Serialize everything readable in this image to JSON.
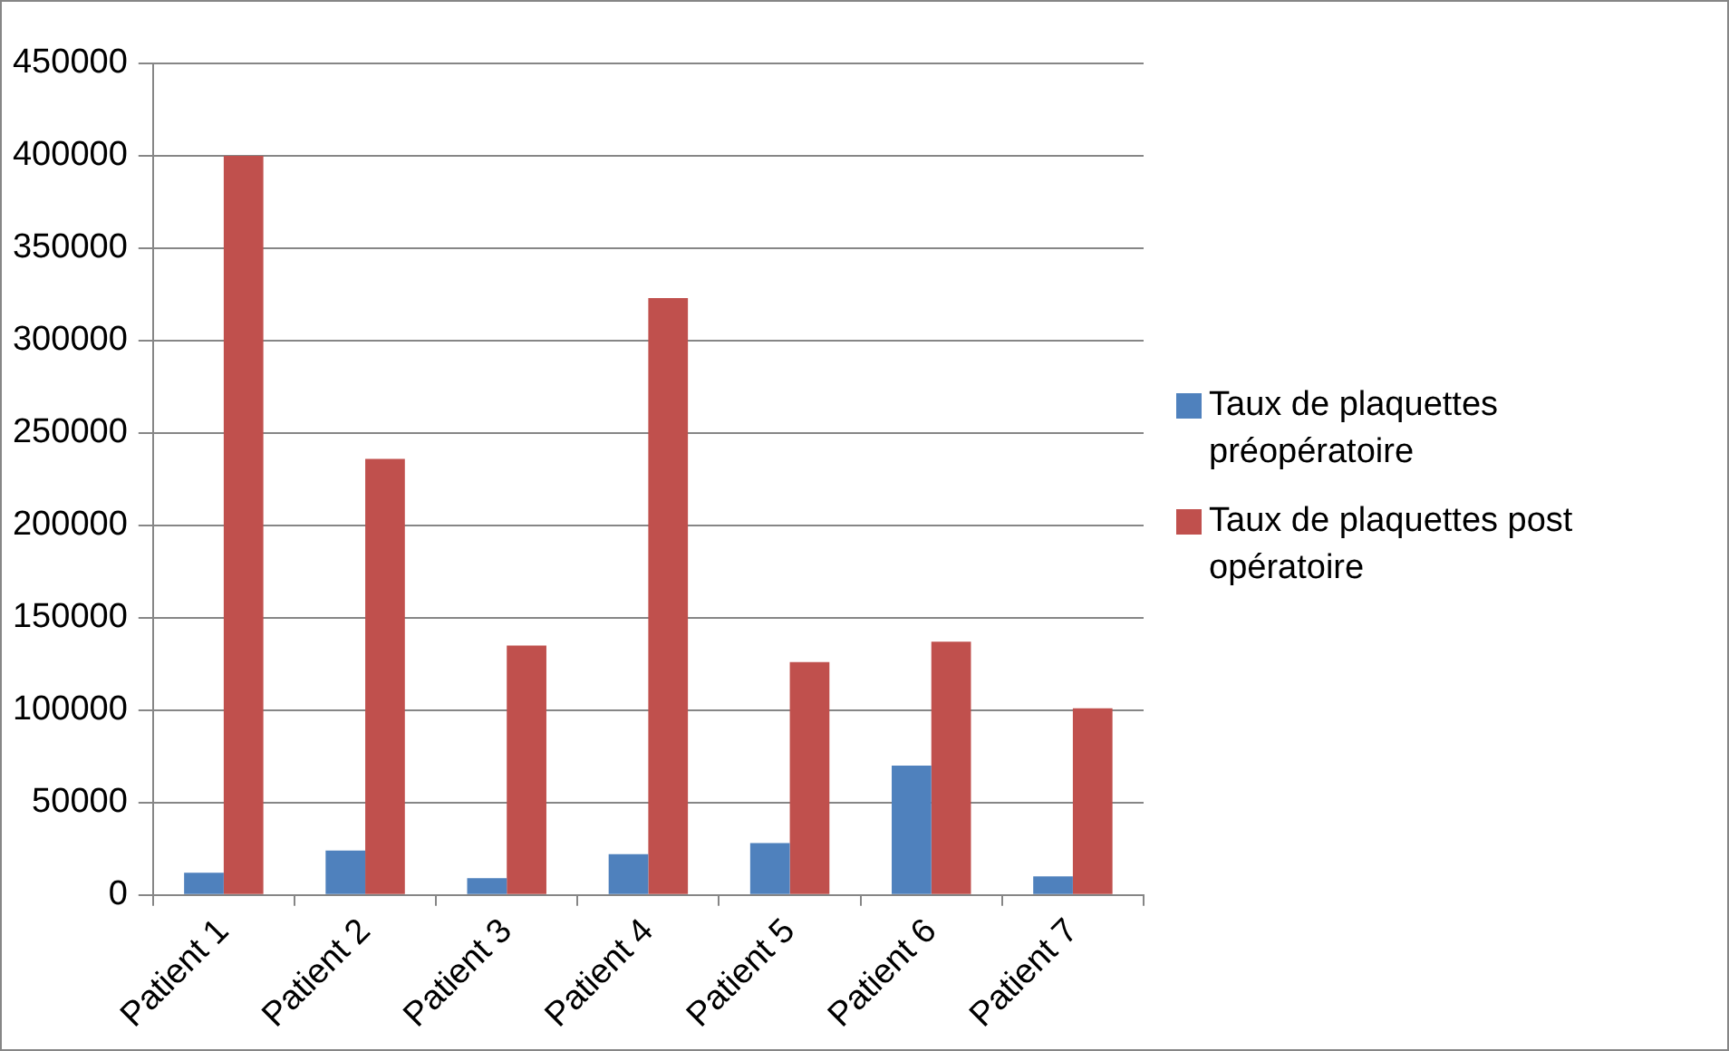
{
  "chart_data": {
    "type": "bar",
    "categories": [
      "Patient 1",
      "Patient 2",
      "Patient 3",
      "Patient 4",
      "Patient 5",
      "Patient 6",
      "Patient 7"
    ],
    "series": [
      {
        "name": "Taux de plaquettes préopératoire",
        "color": "#4f81bd",
        "values": [
          12000,
          24000,
          9000,
          22000,
          28000,
          70000,
          10000
        ]
      },
      {
        "name": "Taux de plaquettes post opératoire",
        "color": "#c0504d",
        "values": [
          400000,
          236000,
          135000,
          323000,
          126000,
          137000,
          101000
        ]
      }
    ],
    "ylim": [
      0,
      450000
    ],
    "yticks": [
      0,
      50000,
      100000,
      150000,
      200000,
      250000,
      300000,
      350000,
      400000,
      450000
    ],
    "grid": "y",
    "legend": "right"
  }
}
